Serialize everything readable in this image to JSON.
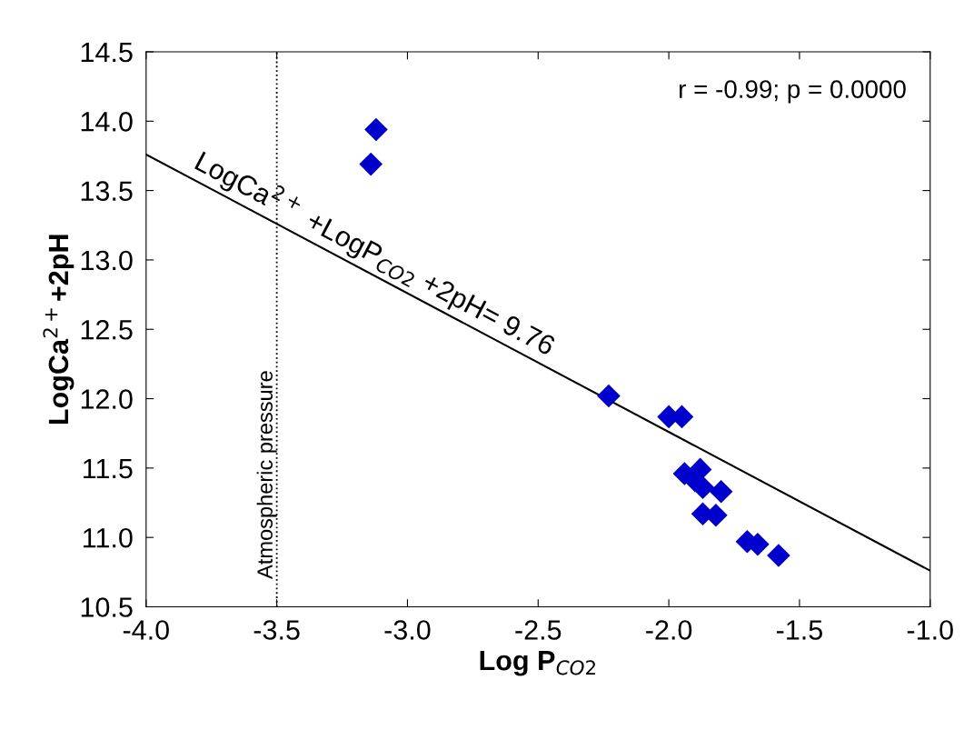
{
  "chart_data": {
    "type": "scatter",
    "xlabel": "Log P$_{CO2}$",
    "ylabel": "LogCa$^{2+}$+2pH",
    "xlim": [
      -4.0,
      -1.0
    ],
    "xticks": [
      {
        "value": -4.0,
        "label": "-4.0"
      },
      {
        "value": -3.5,
        "label": "-3.5"
      },
      {
        "value": -3.0,
        "label": "-3.0"
      },
      {
        "value": -2.5,
        "label": "-2.5"
      },
      {
        "value": -2.0,
        "label": "-2.0"
      },
      {
        "value": -1.5,
        "label": "-1.5"
      },
      {
        "value": -1.0,
        "label": "-1.0"
      }
    ],
    "ylim": [
      10.5,
      14.5
    ],
    "yticks": [
      {
        "value": 10.5,
        "label": "10.5"
      },
      {
        "value": 11.0,
        "label": "11.0"
      },
      {
        "value": 11.5,
        "label": "11.5"
      },
      {
        "value": 12.0,
        "label": "12.0"
      },
      {
        "value": 12.5,
        "label": "12.5"
      },
      {
        "value": 13.0,
        "label": "13.0"
      },
      {
        "value": 13.5,
        "label": "13.5"
      },
      {
        "value": 14.0,
        "label": "14.0"
      },
      {
        "value": 14.5,
        "label": "14.5"
      }
    ],
    "marker": "diamond",
    "grid": false,
    "series": [
      {
        "color": "#0000cc",
        "x": [
          -3.12,
          -3.14,
          -2.23,
          -2.0,
          -1.95,
          -1.94,
          -1.88,
          -1.9,
          -1.87,
          -1.8,
          -1.87,
          -1.82,
          -1.7,
          -1.66,
          -1.58
        ],
        "values": [
          13.94,
          13.69,
          12.02,
          11.87,
          11.87,
          11.46,
          11.49,
          11.41,
          11.36,
          11.33,
          11.17,
          11.16,
          10.97,
          10.95,
          10.87
        ]
      },
      {
        "type": "line",
        "color": "#000000",
        "marker": "none",
        "line_style": "solid",
        "x": [
          -4.0,
          -1.0
        ],
        "values": [
          13.76,
          10.76
        ]
      }
    ],
    "ref_lines": [
      {
        "axis": "x",
        "value": -3.5,
        "label": "Atmospheric pressure",
        "color": "#000000",
        "line_style": "dotted"
      }
    ],
    "annotations": [
      "r = -0.99; p = 0.0000",
      "LogCa$^{2+}$ +LogP$_{CO2}$ +2pH= 9.76"
    ]
  }
}
